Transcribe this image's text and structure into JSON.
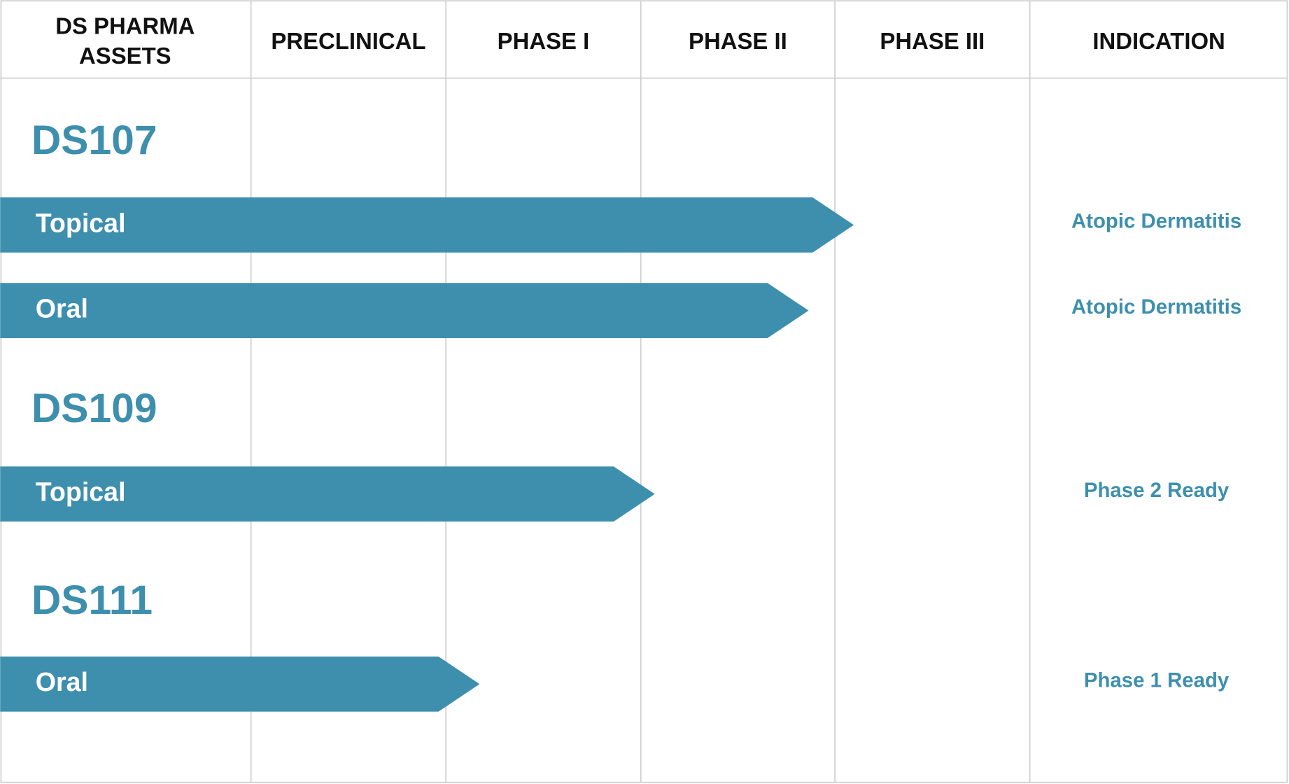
{
  "header": {
    "asset_column": [
      "DS PHARMA",
      "ASSETS"
    ],
    "phase_columns": [
      "PRECLINICAL",
      "PHASE I",
      "PHASE II",
      "PHASE III"
    ],
    "indication_column": "INDICATION"
  },
  "assets": [
    {
      "name": "DS107",
      "programs": [
        {
          "route": "Topical",
          "indication": "Atopic Dermatitis"
        },
        {
          "route": "Oral",
          "indication": "Atopic Dermatitis"
        }
      ]
    },
    {
      "name": "DS109",
      "programs": [
        {
          "route": "Topical",
          "indication": "Phase 2 Ready"
        }
      ]
    },
    {
      "name": "DS111",
      "programs": [
        {
          "route": "Oral",
          "indication": "Phase 1 Ready"
        }
      ]
    }
  ]
}
